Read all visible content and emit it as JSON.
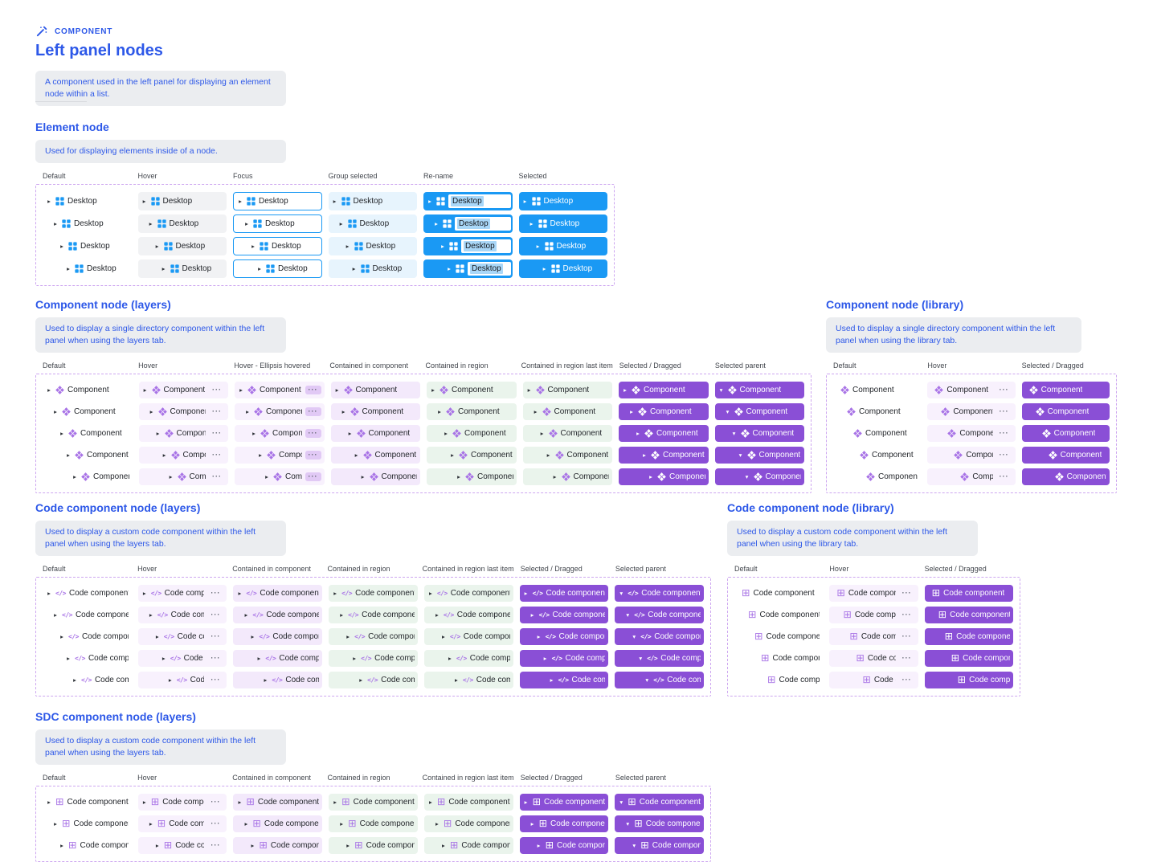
{
  "page": {
    "badge": "COMPONENT",
    "title": "Left panel nodes",
    "intro": "A component used in the left panel for displaying an element node within a list."
  },
  "icons": {
    "badge_icon": "wand-icon",
    "caret_right": "▸",
    "caret_down": "▾",
    "ellipsis": "···",
    "code_glyph": "</>",
    "grid_glyph": "⊞"
  },
  "colors": {
    "accent": "#2d58e8",
    "el_blue": "#1a99f4",
    "el_hover": "#f1f2f4",
    "group_sel": "#e7f4fd",
    "rename_sel": "#a9d7f8",
    "purple": "#8a4fd6",
    "purple_icon": "#a873e6",
    "purple_hover": "#f8f1fd",
    "purple_contained": "#f3e9fb",
    "ellipsis_pill": "#e1c9f5",
    "green": "#eaf4ec",
    "dash": "#cda6f0",
    "desc_bg": "#ebedf0",
    "header_text": "#42464d",
    "node_text": "#23262b"
  },
  "sections": [
    {
      "id": "element-node",
      "title": "Element node",
      "description": "Used for displaying elements inside of a node.",
      "node_label": "Desktop",
      "icon": "element-grid",
      "theme": "blue",
      "caret": true,
      "ellipsis": false,
      "rows": 4,
      "columns": [
        {
          "label": "Default",
          "state": "default"
        },
        {
          "label": "Hover",
          "state": "hover"
        },
        {
          "label": "Focus",
          "state": "focus"
        },
        {
          "label": "Group selected",
          "state": "group-selected"
        },
        {
          "label": "Re-name",
          "state": "rename"
        },
        {
          "label": "Selected",
          "state": "selected"
        }
      ]
    },
    {
      "id": "component-layers",
      "title": "Component node (layers)",
      "description": "Used to display a single directory component within the left panel when using the layers tab.",
      "node_label": "Component",
      "icon": "component-diamond",
      "theme": "purple",
      "caret": true,
      "ellipsis": true,
      "rows": 5,
      "columns": [
        {
          "label": "Default",
          "state": "default"
        },
        {
          "label": "Hover",
          "state": "hover"
        },
        {
          "label": "Hover - Ellipsis hovered",
          "state": "hover-ellipsis"
        },
        {
          "label": "Contained in component",
          "state": "contained-component"
        },
        {
          "label": "Contained in region",
          "state": "contained-region"
        },
        {
          "label": "Contained in region last item",
          "state": "contained-region-last"
        },
        {
          "label": "Selected / Dragged",
          "state": "selected"
        },
        {
          "label": "Selected parent",
          "state": "selected-parent"
        }
      ]
    },
    {
      "id": "component-library",
      "title": "Component node (library)",
      "description": "Used to display a single directory component within the left panel when using the library tab.",
      "node_label": "Component",
      "icon": "component-diamond",
      "theme": "purple",
      "caret": false,
      "ellipsis": true,
      "rows": 5,
      "columns": [
        {
          "label": "Default",
          "state": "default"
        },
        {
          "label": "Hover",
          "state": "hover"
        },
        {
          "label": "Selected / Dragged",
          "state": "selected"
        }
      ]
    },
    {
      "id": "code-layers",
      "title": "Code component node (layers)",
      "description": "Used to display a custom code component within the left panel when using the layers tab.",
      "node_label": "Code component",
      "icon": "code-glyph",
      "theme": "purple",
      "caret": true,
      "ellipsis": true,
      "rows": 5,
      "columns": [
        {
          "label": "Default",
          "state": "default"
        },
        {
          "label": "Hover",
          "state": "hover"
        },
        {
          "label": "Contained in component",
          "state": "contained-component"
        },
        {
          "label": "Contained in region",
          "state": "contained-region"
        },
        {
          "label": "Contained in region last item",
          "state": "contained-region-last"
        },
        {
          "label": "Selected / Dragged",
          "state": "selected"
        },
        {
          "label": "Selected parent",
          "state": "selected-parent"
        }
      ]
    },
    {
      "id": "code-library",
      "title": "Code component node (library)",
      "description": "Used to display a custom code component within the left panel when using the library tab.",
      "node_label": "Code component",
      "icon": "grid-glyph",
      "theme": "purple",
      "caret": false,
      "ellipsis": true,
      "rows": 5,
      "columns": [
        {
          "label": "Default",
          "state": "default"
        },
        {
          "label": "Hover",
          "state": "hover"
        },
        {
          "label": "Selected / Dragged",
          "state": "selected"
        }
      ]
    },
    {
      "id": "sdc-layers",
      "title": "SDC component node (layers)",
      "description": "Used to display a custom code component within the left panel when using the layers tab.",
      "node_label": "Code component",
      "icon": "grid-glyph",
      "theme": "purple",
      "caret": true,
      "ellipsis": true,
      "rows": 3,
      "columns": [
        {
          "label": "Default",
          "state": "default"
        },
        {
          "label": "Hover",
          "state": "hover"
        },
        {
          "label": "Contained in component",
          "state": "contained-component"
        },
        {
          "label": "Contained in region",
          "state": "contained-region"
        },
        {
          "label": "Contained in region last item",
          "state": "contained-region-last"
        },
        {
          "label": "Selected / Dragged",
          "state": "selected"
        },
        {
          "label": "Selected parent",
          "state": "selected-parent"
        }
      ]
    }
  ]
}
